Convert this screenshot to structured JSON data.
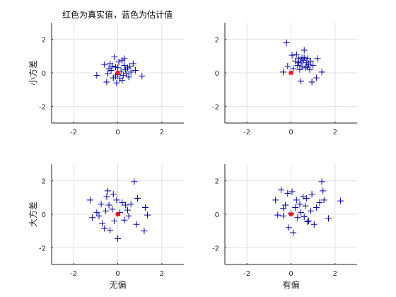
{
  "title": "红色为真实值，蓝色为估计值",
  "colors": {
    "estimate": "#0000aa",
    "truth": "#ff0000",
    "grid": "#e0e0e0",
    "axis": "#262626"
  },
  "chart_data": [
    {
      "type": "scatter",
      "panel": "top-left",
      "ylabel": "小方差",
      "xlabel": "",
      "xlim": [
        -3,
        3
      ],
      "ylim": [
        -3,
        3
      ],
      "xticks": [
        -2,
        0,
        2
      ],
      "yticks": [
        -2,
        0,
        2
      ],
      "grid": true,
      "truth": {
        "x": 0,
        "y": 0
      },
      "estimates": [
        [
          -0.95,
          -0.15
        ],
        [
          -0.5,
          -0.55
        ],
        [
          -0.45,
          -0.05
        ],
        [
          -0.4,
          0.25
        ],
        [
          -0.35,
          0.55
        ],
        [
          -0.3,
          0.15
        ],
        [
          -0.25,
          0.4
        ],
        [
          -0.2,
          -0.3
        ],
        [
          -0.15,
          0.95
        ],
        [
          -0.1,
          0.35
        ],
        [
          -0.05,
          -0.6
        ],
        [
          0.0,
          0.3
        ],
        [
          0.05,
          0.65
        ],
        [
          0.1,
          -0.35
        ],
        [
          0.15,
          0.1
        ],
        [
          0.2,
          0.75
        ],
        [
          0.25,
          -0.15
        ],
        [
          0.3,
          0.45
        ],
        [
          0.35,
          0.2
        ],
        [
          0.4,
          -0.05
        ],
        [
          0.45,
          0.3
        ],
        [
          0.5,
          -0.25
        ],
        [
          0.6,
          0.05
        ],
        [
          0.7,
          0.55
        ],
        [
          0.8,
          0.15
        ],
        [
          1.1,
          -0.2
        ],
        [
          -0.1,
          -0.2
        ],
        [
          0.0,
          -0.1
        ],
        [
          0.3,
          0.85
        ],
        [
          -0.6,
          0.5
        ],
        [
          0.55,
          0.4
        ],
        [
          0.2,
          -0.45
        ]
      ]
    },
    {
      "type": "scatter",
      "panel": "top-right",
      "ylabel": "",
      "xlabel": "",
      "xlim": [
        -3,
        3
      ],
      "ylim": [
        -3,
        3
      ],
      "xticks": [
        -2,
        0,
        2
      ],
      "yticks": [
        -2,
        0,
        2
      ],
      "grid": true,
      "truth": {
        "x": 0,
        "y": 0
      },
      "estimates": [
        [
          -0.2,
          1.8
        ],
        [
          -0.35,
          0.05
        ],
        [
          -0.15,
          0.4
        ],
        [
          0.05,
          1.05
        ],
        [
          0.1,
          0.25
        ],
        [
          0.2,
          0.7
        ],
        [
          0.3,
          0.45
        ],
        [
          0.35,
          0.85
        ],
        [
          0.4,
          0.2
        ],
        [
          0.45,
          0.65
        ],
        [
          0.5,
          0.9
        ],
        [
          0.5,
          0.4
        ],
        [
          0.55,
          0.75
        ],
        [
          0.6,
          1.35
        ],
        [
          0.65,
          0.3
        ],
        [
          0.7,
          0.6
        ],
        [
          0.75,
          0.85
        ],
        [
          0.8,
          0.5
        ],
        [
          0.85,
          0.2
        ],
        [
          0.9,
          0.7
        ],
        [
          0.95,
          -0.55
        ],
        [
          1.0,
          0.45
        ],
        [
          1.15,
          -0.3
        ],
        [
          1.2,
          0.85
        ],
        [
          1.4,
          0.05
        ],
        [
          0.45,
          -0.5
        ],
        [
          0.6,
          0.9
        ],
        [
          0.35,
          0.6
        ],
        [
          0.75,
          0.35
        ],
        [
          0.25,
          1.1
        ]
      ]
    },
    {
      "type": "scatter",
      "panel": "bottom-left",
      "ylabel": "大方差",
      "xlabel": "无偏",
      "xlim": [
        -3,
        3
      ],
      "ylim": [
        -3,
        3
      ],
      "xticks": [
        -2,
        0,
        2
      ],
      "yticks": [
        -2,
        0,
        2
      ],
      "grid": true,
      "truth": {
        "x": 0,
        "y": 0
      },
      "estimates": [
        [
          -1.25,
          0.85
        ],
        [
          -1.15,
          -0.2
        ],
        [
          -0.95,
          0.1
        ],
        [
          -0.85,
          -0.1
        ],
        [
          -0.75,
          0.6
        ],
        [
          -0.7,
          -0.55
        ],
        [
          -0.6,
          -0.85
        ],
        [
          -0.5,
          1.05
        ],
        [
          -0.45,
          1.4
        ],
        [
          -0.4,
          0.55
        ],
        [
          -0.35,
          -0.95
        ],
        [
          -0.25,
          0.3
        ],
        [
          -0.2,
          1.2
        ],
        [
          -0.15,
          -0.4
        ],
        [
          -0.05,
          0.85
        ],
        [
          0.0,
          -1.45
        ],
        [
          0.1,
          0.1
        ],
        [
          0.2,
          0.7
        ],
        [
          0.3,
          -0.35
        ],
        [
          0.35,
          0.55
        ],
        [
          0.45,
          0.25
        ],
        [
          0.6,
          0.6
        ],
        [
          0.75,
          1.95
        ],
        [
          0.85,
          -0.6
        ],
        [
          0.9,
          0.95
        ],
        [
          1.2,
          -1.0
        ],
        [
          1.25,
          0.4
        ],
        [
          1.35,
          -0.05
        ],
        [
          -0.55,
          0.2
        ],
        [
          0.5,
          -0.1
        ]
      ]
    },
    {
      "type": "scatter",
      "panel": "bottom-right",
      "ylabel": "",
      "xlabel": "有偏",
      "xlim": [
        -3,
        3
      ],
      "ylim": [
        -3,
        3
      ],
      "xticks": [
        -2,
        0,
        2
      ],
      "yticks": [
        -2,
        0,
        2
      ],
      "grid": true,
      "truth": {
        "x": 0,
        "y": 0
      },
      "estimates": [
        [
          -0.7,
          0.85
        ],
        [
          -0.6,
          -0.05
        ],
        [
          -0.45,
          1.45
        ],
        [
          -0.35,
          -0.1
        ],
        [
          -0.25,
          0.55
        ],
        [
          -0.15,
          1.25
        ],
        [
          -0.1,
          -0.8
        ],
        [
          0.0,
          0.05
        ],
        [
          0.05,
          1.35
        ],
        [
          0.1,
          -1.1
        ],
        [
          0.2,
          0.4
        ],
        [
          0.25,
          0.85
        ],
        [
          0.3,
          -0.2
        ],
        [
          0.4,
          0.6
        ],
        [
          0.45,
          0.1
        ],
        [
          0.55,
          1.05
        ],
        [
          0.6,
          -0.15
        ],
        [
          0.65,
          0.5
        ],
        [
          0.7,
          0.95
        ],
        [
          0.8,
          -0.4
        ],
        [
          0.9,
          0.2
        ],
        [
          0.95,
          1.2
        ],
        [
          1.05,
          -0.6
        ],
        [
          1.15,
          0.4
        ],
        [
          1.3,
          0.7
        ],
        [
          1.4,
          1.95
        ],
        [
          1.45,
          1.4
        ],
        [
          1.5,
          0.85
        ],
        [
          1.7,
          -0.25
        ],
        [
          2.25,
          0.8
        ],
        [
          0.75,
          -0.45
        ],
        [
          -0.35,
          0.35
        ]
      ]
    }
  ]
}
